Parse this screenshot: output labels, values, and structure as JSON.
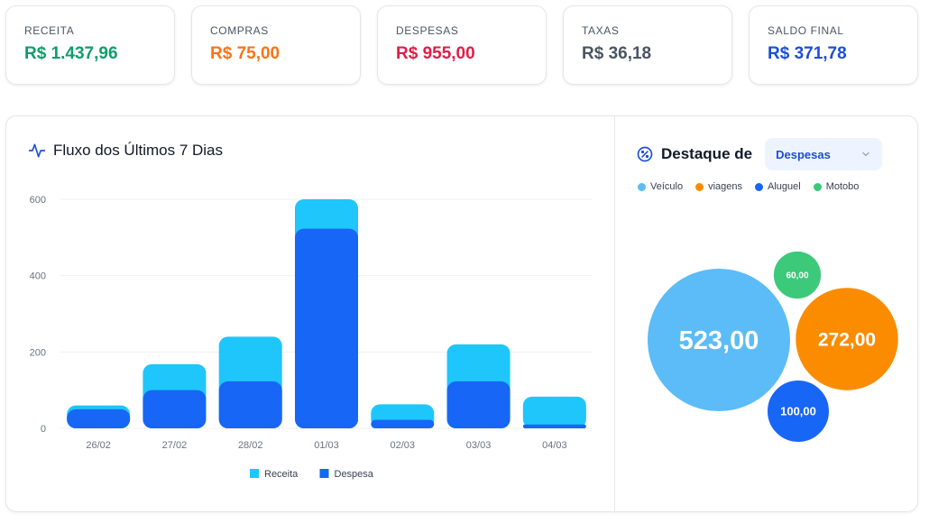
{
  "kpis": [
    {
      "label": "RECEITA",
      "value": "R$ 1.437,96",
      "color": "#0f9d6b"
    },
    {
      "label": "COMPRAS",
      "value": "R$ 75,00",
      "color": "#f97316"
    },
    {
      "label": "DESPESAS",
      "value": "R$ 955,00",
      "color": "#e11d48"
    },
    {
      "label": "TAXAS",
      "value": "R$ 36,18",
      "color": "#4b5563"
    },
    {
      "label": "SALDO FINAL",
      "value": "R$ 371,78",
      "color": "#1d4ed8"
    }
  ],
  "flow": {
    "title": "Fluxo dos Últimos 7 Dias",
    "icon": "activity-icon"
  },
  "destaque": {
    "title": "Destaque de",
    "selected": "Despesas",
    "icon": "percent-icon"
  },
  "chart_data": [
    {
      "type": "bar",
      "categories": [
        "26/02",
        "27/02",
        "28/02",
        "01/03",
        "02/03",
        "03/03",
        "04/03"
      ],
      "series": [
        {
          "name": "Receita",
          "values": [
            60,
            168,
            240,
            600,
            63,
            220,
            83
          ],
          "color": "#1ec6fb"
        },
        {
          "name": "Despesa",
          "values": [
            50,
            100,
            123,
            523,
            22,
            123,
            10
          ],
          "color": "#1766f5"
        }
      ],
      "ylim": [
        0,
        600
      ],
      "yticks": [
        0,
        200,
        400,
        600
      ],
      "grid": true,
      "legend": "bottom",
      "title": "",
      "xlabel": "",
      "ylabel": ""
    },
    {
      "type": "bubble",
      "legend": "top",
      "items": [
        {
          "name": "Veículo",
          "value": 523,
          "label": "523,00",
          "color": "#5bbcf7"
        },
        {
          "name": "viagens",
          "value": 272,
          "label": "272,00",
          "color": "#fb8c00"
        },
        {
          "name": "Aluguel",
          "value": 100,
          "label": "100,00",
          "color": "#1766f5"
        },
        {
          "name": "Motobo",
          "value": 60,
          "label": "60,00",
          "color": "#3cc97a"
        }
      ]
    }
  ]
}
